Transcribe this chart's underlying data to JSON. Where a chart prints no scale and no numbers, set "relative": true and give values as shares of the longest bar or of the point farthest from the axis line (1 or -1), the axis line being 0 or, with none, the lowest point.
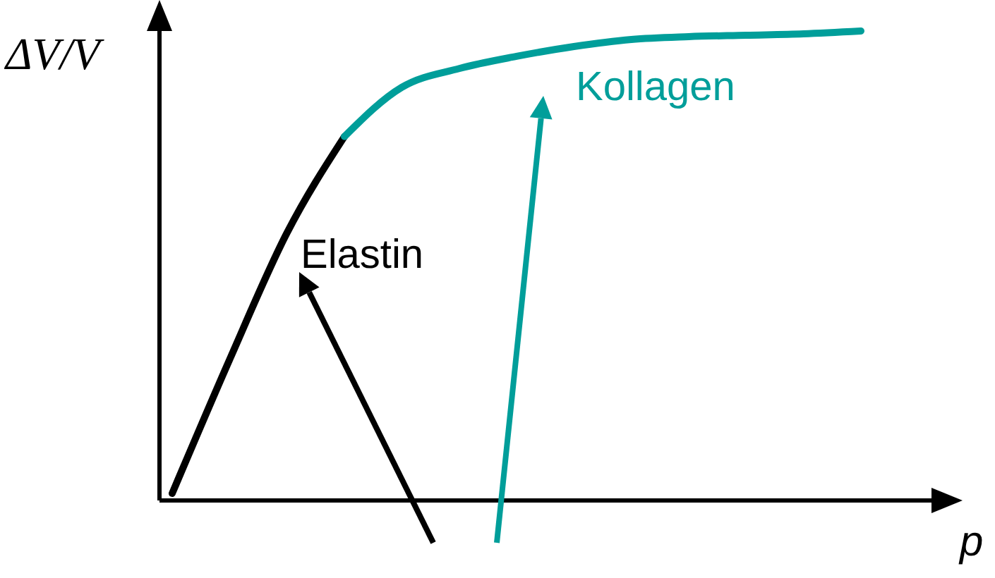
{
  "chart_data": {
    "type": "line",
    "relative": true,
    "xlabel": "p",
    "ylabel": "ΔV/V",
    "marker": "none",
    "categories": [
      null,
      null,
      null,
      null,
      null,
      null,
      null,
      null,
      null,
      null,
      null,
      null,
      null
    ],
    "series": [
      {
        "name": "Elastin",
        "color": "#000000",
        "values": [
          0.015,
          0.3,
          0.57,
          0.775,
          null,
          null,
          null,
          null,
          null,
          null,
          null,
          null,
          null
        ]
      },
      {
        "name": "Kollagen",
        "color": "#009e9a",
        "values": [
          null,
          null,
          null,
          0.775,
          0.88,
          0.92,
          0.946,
          0.967,
          0.982,
          0.988,
          0.991,
          0.994,
          1
        ]
      }
    ]
  }
}
